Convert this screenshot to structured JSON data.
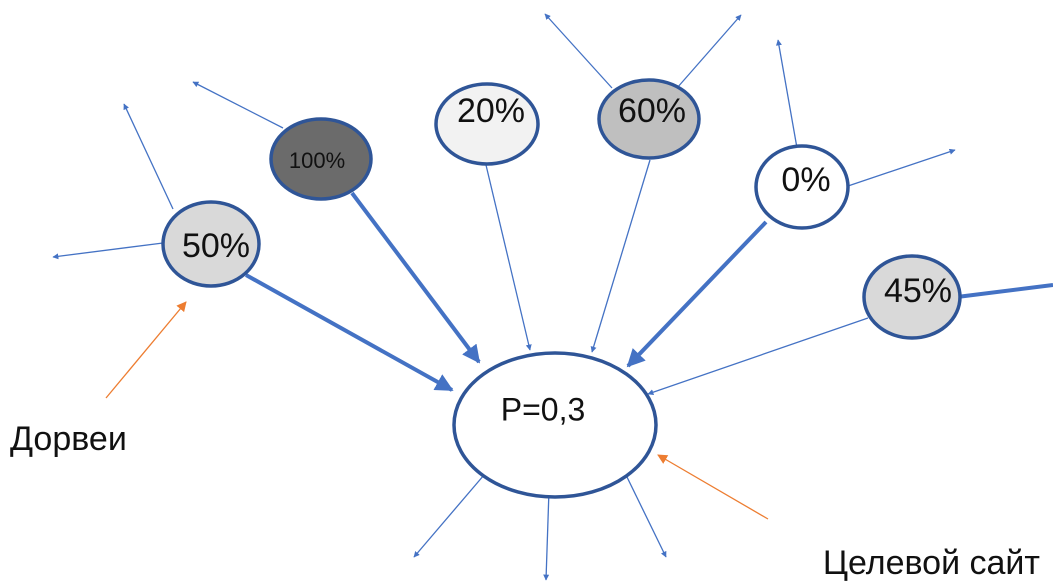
{
  "diagram": {
    "center_node": {
      "label": "P=0,3",
      "fill": "#ffffff"
    },
    "nodes": [
      {
        "id": "n50",
        "label": "50%",
        "fill": "#d9d9d9"
      },
      {
        "id": "n100",
        "label": "100%",
        "fill": "#6b6b6b"
      },
      {
        "id": "n20",
        "label": "20%",
        "fill": "#f2f2f2"
      },
      {
        "id": "n60",
        "label": "60%",
        "fill": "#bfbfbf"
      },
      {
        "id": "n0",
        "label": "0%",
        "fill": "#ffffff"
      },
      {
        "id": "n45",
        "label": "45%",
        "fill": "#d9d9d9"
      }
    ],
    "captions": {
      "doorways": "Дорвеи",
      "target_site": "Целевой сайт"
    },
    "colors": {
      "stroke": "#2f5597",
      "arrow": "#4472c4",
      "callout": "#ed7d31"
    }
  }
}
